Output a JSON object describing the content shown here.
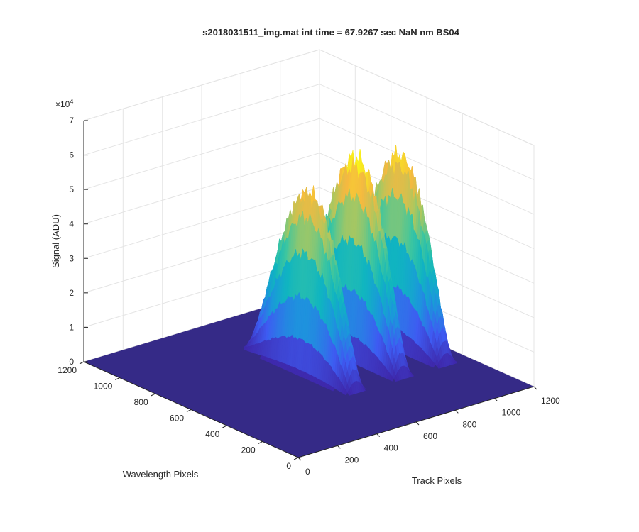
{
  "chart_data": {
    "type": "surface",
    "title": "s2018031511_img.mat int time = 67.9267 sec  NaN nm BS04",
    "xlabel": "Track Pixels",
    "ylabel": "Wavelength Pixels",
    "zlabel": "Signal (ADU)",
    "z_exponent_label": "×10",
    "z_exponent_value": "4",
    "xlim": [
      0,
      1200
    ],
    "ylim": [
      0,
      1200
    ],
    "zlim": [
      0,
      70000
    ],
    "x_ticks": [
      "0",
      "200",
      "400",
      "600",
      "800",
      "1000",
      "1200"
    ],
    "y_ticks": [
      "0",
      "200",
      "400",
      "600",
      "800",
      "1000",
      "1200"
    ],
    "z_ticks": [
      "0",
      "1",
      "2",
      "3",
      "4",
      "5",
      "6",
      "7"
    ],
    "grid": true,
    "colormap": [
      "#3e26a8",
      "#3e5bf2",
      "#1c96dc",
      "#10b5c0",
      "#3ec69f",
      "#aec75e",
      "#f5b940",
      "#f9fb15"
    ],
    "surface_color": "#352a87",
    "peaks": [
      {
        "track_center": 620,
        "width": 110,
        "wavelength_start": 350,
        "wavelength_end": 950,
        "peak": 52000
      },
      {
        "track_center": 860,
        "width": 110,
        "wavelength_start": 350,
        "wavelength_end": 950,
        "peak": 58000
      },
      {
        "track_center": 1080,
        "width": 110,
        "wavelength_start": 350,
        "wavelength_end": 950,
        "peak": 55000
      }
    ]
  }
}
